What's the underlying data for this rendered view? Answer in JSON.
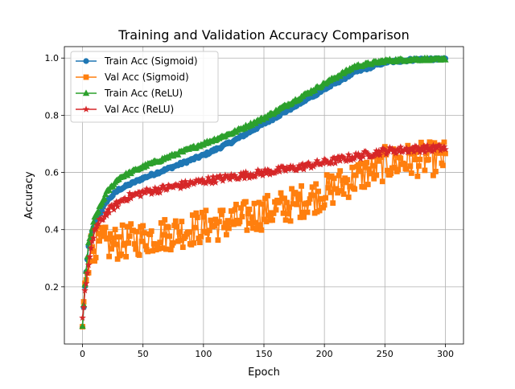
{
  "chart_data": {
    "type": "line",
    "title": "Training and Validation Accuracy Comparison",
    "xlabel": "Epoch",
    "ylabel": "Accuracy",
    "xlim": [
      -15,
      315
    ],
    "ylim": [
      0.0,
      1.04
    ],
    "xticks": [
      0,
      50,
      100,
      150,
      200,
      250,
      300
    ],
    "yticks": [
      0.2,
      0.4,
      0.6,
      0.8,
      1.0
    ],
    "xtick_labels": [
      "0",
      "50",
      "100",
      "150",
      "200",
      "250",
      "300"
    ],
    "ytick_labels": [
      "0.2",
      "0.4",
      "0.6",
      "0.8",
      "1.0"
    ],
    "grid": true,
    "legend_position": "top-left",
    "colors": {
      "train_sigmoid": "#1f77b4",
      "val_sigmoid": "#ff7f0e",
      "train_relu": "#2ca02c",
      "val_relu": "#d62728"
    },
    "epochs": {
      "start": 0,
      "end": 300
    },
    "series": [
      {
        "name": "Train Acc (Sigmoid)",
        "color": "#1f77b4",
        "marker": "circle",
        "keypoints": [
          [
            0,
            0.06
          ],
          [
            2,
            0.2
          ],
          [
            5,
            0.34
          ],
          [
            10,
            0.42
          ],
          [
            20,
            0.5
          ],
          [
            30,
            0.54
          ],
          [
            50,
            0.58
          ],
          [
            75,
            0.62
          ],
          [
            100,
            0.66
          ],
          [
            125,
            0.71
          ],
          [
            150,
            0.77
          ],
          [
            175,
            0.83
          ],
          [
            200,
            0.89
          ],
          [
            225,
            0.95
          ],
          [
            250,
            0.985
          ],
          [
            275,
            0.995
          ],
          [
            300,
            0.998
          ]
        ],
        "noise": 0.005
      },
      {
        "name": "Val Acc (Sigmoid)",
        "color": "#ff7f0e",
        "marker": "square",
        "keypoints": [
          [
            0,
            0.06
          ],
          [
            3,
            0.25
          ],
          [
            6,
            0.33
          ],
          [
            10,
            0.35
          ],
          [
            25,
            0.35
          ],
          [
            50,
            0.37
          ],
          [
            75,
            0.39
          ],
          [
            100,
            0.41
          ],
          [
            125,
            0.43
          ],
          [
            150,
            0.46
          ],
          [
            175,
            0.49
          ],
          [
            200,
            0.53
          ],
          [
            225,
            0.58
          ],
          [
            250,
            0.63
          ],
          [
            275,
            0.645
          ],
          [
            300,
            0.65
          ]
        ],
        "noise": 0.06
      },
      {
        "name": "Train Acc (ReLU)",
        "color": "#2ca02c",
        "marker": "triangle",
        "keypoints": [
          [
            0,
            0.06
          ],
          [
            2,
            0.21
          ],
          [
            5,
            0.35
          ],
          [
            10,
            0.44
          ],
          [
            20,
            0.53
          ],
          [
            30,
            0.58
          ],
          [
            50,
            0.62
          ],
          [
            75,
            0.66
          ],
          [
            100,
            0.7
          ],
          [
            125,
            0.74
          ],
          [
            150,
            0.79
          ],
          [
            175,
            0.85
          ],
          [
            200,
            0.91
          ],
          [
            225,
            0.97
          ],
          [
            250,
            0.99
          ],
          [
            275,
            0.995
          ],
          [
            300,
            0.998
          ]
        ],
        "noise": 0.005
      },
      {
        "name": "Val Acc (ReLU)",
        "color": "#d62728",
        "marker": "star",
        "keypoints": [
          [
            0,
            0.09
          ],
          [
            3,
            0.22
          ],
          [
            6,
            0.3
          ],
          [
            10,
            0.4
          ],
          [
            20,
            0.46
          ],
          [
            35,
            0.51
          ],
          [
            50,
            0.53
          ],
          [
            75,
            0.55
          ],
          [
            100,
            0.57
          ],
          [
            125,
            0.585
          ],
          [
            150,
            0.6
          ],
          [
            175,
            0.615
          ],
          [
            200,
            0.635
          ],
          [
            225,
            0.655
          ],
          [
            250,
            0.675
          ],
          [
            275,
            0.682
          ],
          [
            300,
            0.685
          ]
        ],
        "noise": 0.012
      }
    ]
  }
}
